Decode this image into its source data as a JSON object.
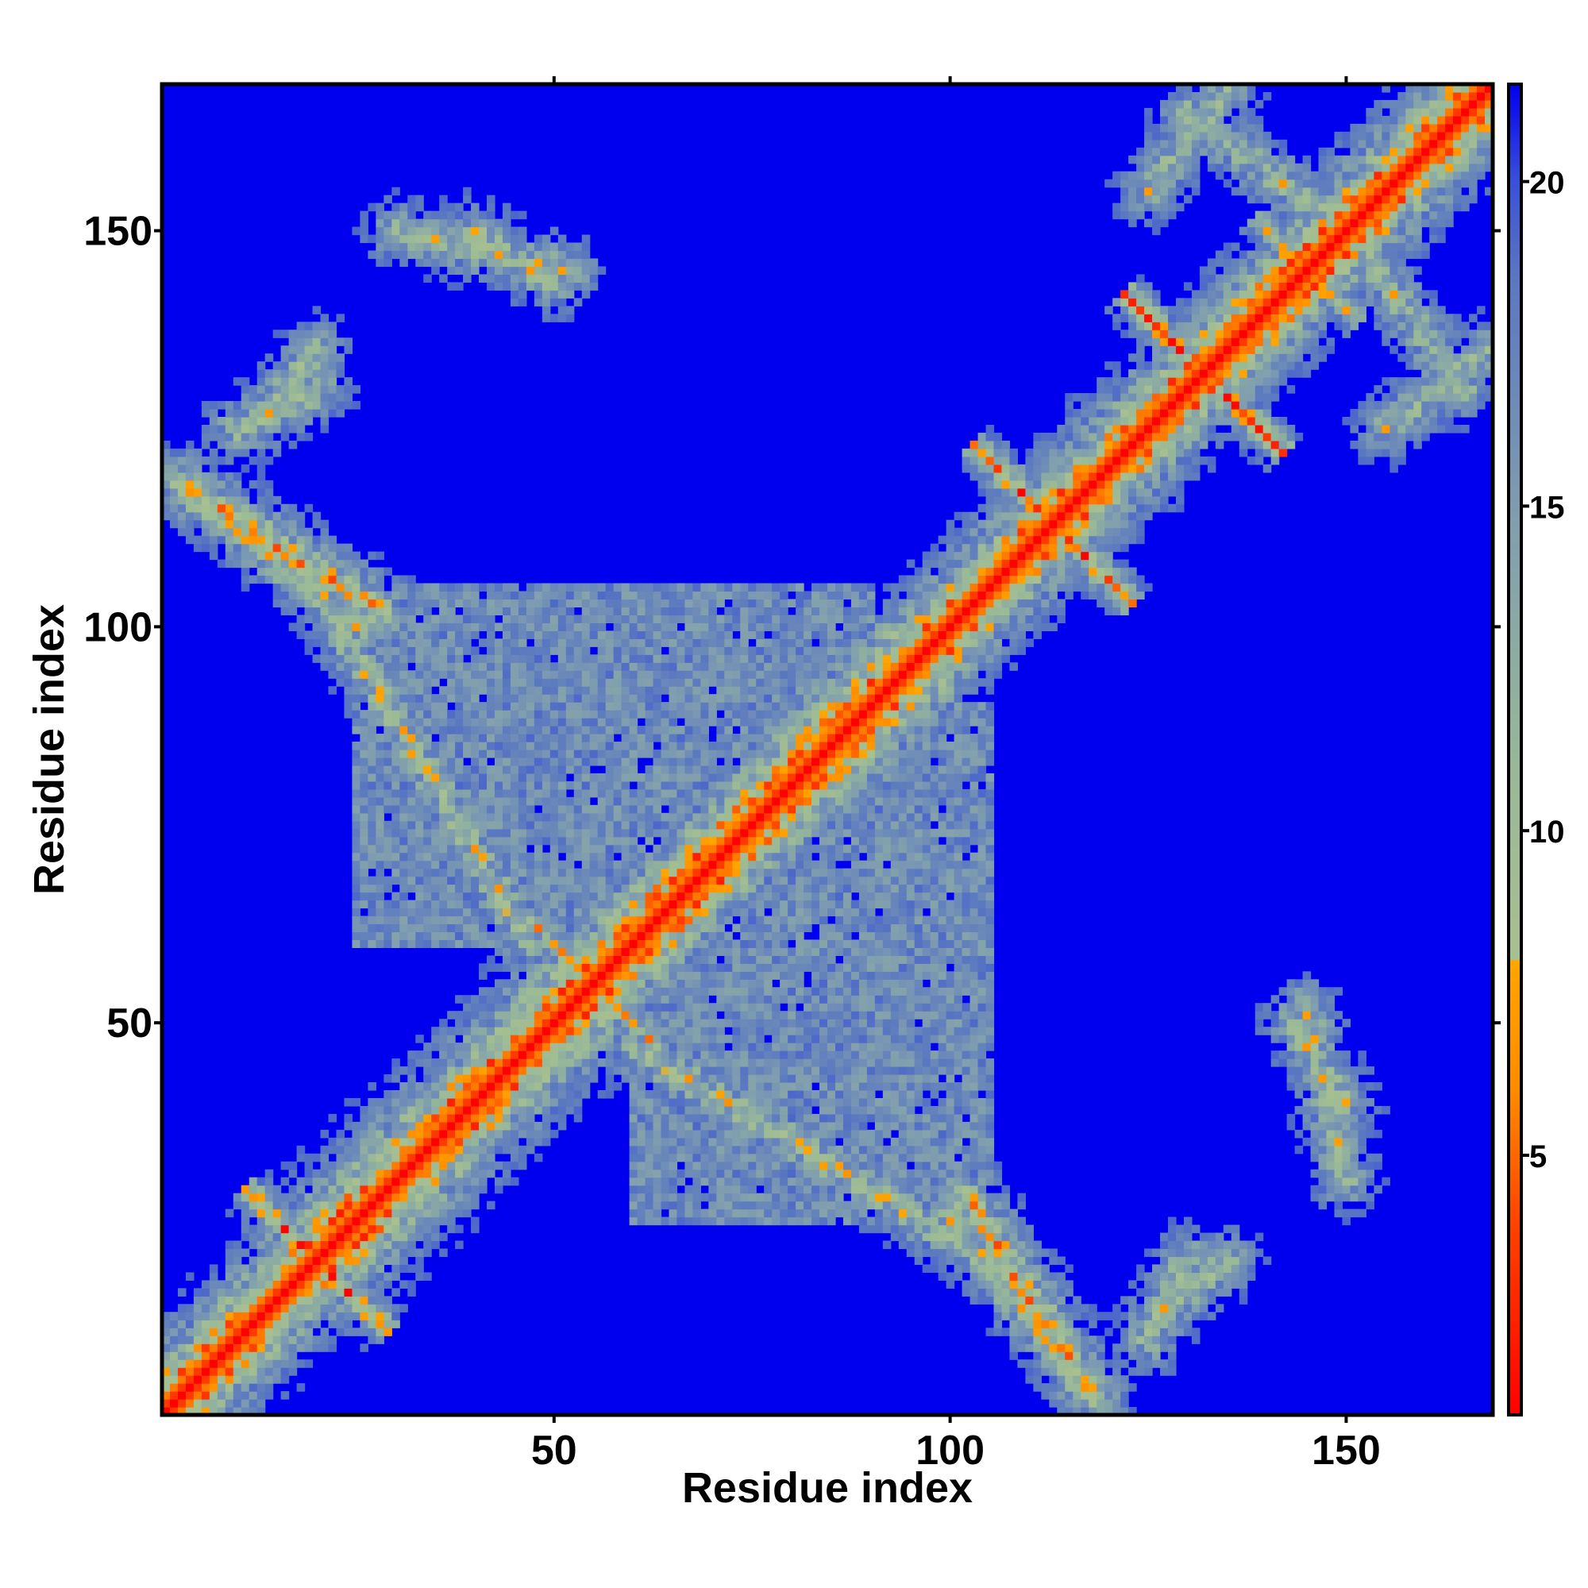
{
  "chart_data": {
    "type": "heatmap",
    "title": "",
    "xlabel": "Residue index",
    "ylabel": "Residue index",
    "n_residues": 168,
    "xlim": [
      1,
      168
    ],
    "ylim": [
      1,
      168
    ],
    "x_ticks": [
      50,
      100,
      150
    ],
    "y_ticks": [
      50,
      100,
      150
    ],
    "x_tick_labels": [
      "50",
      "100",
      "150"
    ],
    "y_tick_labels": [
      "50",
      "100",
      "150"
    ],
    "top_ticks": [
      50,
      100,
      150
    ],
    "colorbar": {
      "range": [
        1,
        21.5
      ],
      "ticks": [
        5,
        10,
        15,
        20
      ],
      "tick_labels": [
        "5",
        "10",
        "15",
        "20"
      ],
      "stops": [
        {
          "value": 1,
          "color": "#ff0000"
        },
        {
          "value": 4,
          "color": "#ff4400"
        },
        {
          "value": 6,
          "color": "#ff8c00"
        },
        {
          "value": 8,
          "color": "#ffa500"
        },
        {
          "value": 8.01,
          "color": "#a8c090"
        },
        {
          "value": 11,
          "color": "#98b898"
        },
        {
          "value": 15,
          "color": "#7e9cb0"
        },
        {
          "value": 18.5,
          "color": "#5a78c0"
        },
        {
          "value": 20,
          "color": "#3a50d8"
        },
        {
          "value": 21.5,
          "color": "#0000ee"
        }
      ]
    },
    "background_color": "#0000ee",
    "contact_features": [
      {
        "kind": "diagonal",
        "description": "main diagonal i=j, distance ~0"
      },
      {
        "kind": "diag-band",
        "center": [
          57,
          57
        ],
        "half_length": 40,
        "offset": 1,
        "strength": 0.9
      },
      {
        "kind": "anti",
        "center": [
          20,
          20
        ],
        "half_length": 9,
        "strength": 0.85
      },
      {
        "kind": "anti",
        "center": [
          55,
          55
        ],
        "half_length": 8,
        "strength": 0.7
      },
      {
        "kind": "anti",
        "center": [
          113,
          113
        ],
        "half_length": 10,
        "strength": 0.85
      },
      {
        "kind": "anti",
        "center": [
          132,
          132
        ],
        "half_length": 10,
        "strength": 0.85
      },
      {
        "kind": "anti",
        "center": [
          145,
          145
        ],
        "half_length": 7,
        "strength": 0.6
      },
      {
        "kind": "parallel",
        "from": [
          3,
          118
        ],
        "to": [
          28,
          102
        ],
        "strength": 0.75
      },
      {
        "kind": "parallel",
        "from": [
          10,
          125
        ],
        "to": [
          20,
          130
        ],
        "strength": 0.6
      },
      {
        "kind": "parallel",
        "from": [
          60,
          47
        ],
        "to": [
          100,
          23
        ],
        "strength": 0.6
      },
      {
        "kind": "parallel",
        "from": [
          100,
          25
        ],
        "to": [
          118,
          3
        ],
        "strength": 0.6
      },
      {
        "kind": "parallel",
        "from": [
          125,
          12
        ],
        "to": [
          135,
          20
        ],
        "strength": 0.55
      },
      {
        "kind": "parallel",
        "from": [
          143,
          50
        ],
        "to": [
          150,
          40
        ],
        "strength": 0.55
      },
      {
        "kind": "parallel",
        "from": [
          30,
          150
        ],
        "to": [
          52,
          145
        ],
        "strength": 0.55
      },
      {
        "kind": "parallel",
        "from": [
          130,
          165
        ],
        "to": [
          150,
          150
        ],
        "strength": 0.55
      },
      {
        "kind": "parallel",
        "from": [
          155,
          125
        ],
        "to": [
          168,
          135
        ],
        "strength": 0.55
      },
      {
        "kind": "region",
        "x": [
          25,
          90
        ],
        "y": [
          60,
          105
        ],
        "strength": 0.25
      }
    ]
  }
}
